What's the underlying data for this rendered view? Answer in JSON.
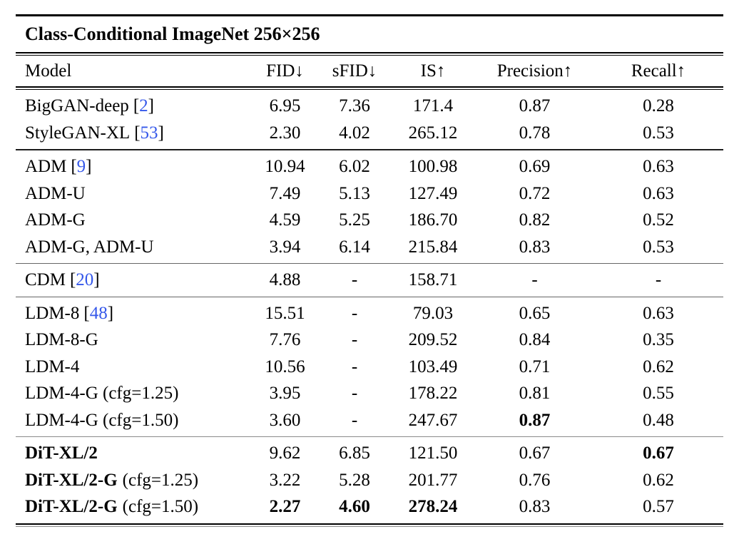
{
  "table": {
    "title": "Class-Conditional ImageNet 256×256",
    "cite_open": "[",
    "cite_close": "]",
    "citation_color": "#3558ea",
    "columns": [
      "Model",
      "FID↓",
      "sFID↓",
      "IS↑",
      "Precision↑",
      "Recall↑"
    ],
    "sections": [
      {
        "rows": [
          {
            "name": "BigGAN-deep",
            "cite": "2",
            "suffix": "",
            "values": [
              "6.95",
              "7.36",
              "171.4",
              "0.87",
              "0.28"
            ],
            "bold_name": false,
            "bold_values": []
          },
          {
            "name": "StyleGAN-XL",
            "cite": "53",
            "suffix": "",
            "values": [
              "2.30",
              "4.02",
              "265.12",
              "0.78",
              "0.53"
            ],
            "bold_name": false,
            "bold_values": []
          }
        ]
      },
      {
        "rows": [
          {
            "name": "ADM",
            "cite": "9",
            "suffix": "",
            "values": [
              "10.94",
              "6.02",
              "100.98",
              "0.69",
              "0.63"
            ],
            "bold_name": false,
            "bold_values": []
          },
          {
            "name": "ADM-U",
            "cite": "",
            "suffix": "",
            "values": [
              "7.49",
              "5.13",
              "127.49",
              "0.72",
              "0.63"
            ],
            "bold_name": false,
            "bold_values": []
          },
          {
            "name": "ADM-G",
            "cite": "",
            "suffix": "",
            "values": [
              "4.59",
              "5.25",
              "186.70",
              "0.82",
              "0.52"
            ],
            "bold_name": false,
            "bold_values": []
          },
          {
            "name": "ADM-G, ADM-U",
            "cite": "",
            "suffix": "",
            "values": [
              "3.94",
              "6.14",
              "215.84",
              "0.83",
              "0.53"
            ],
            "bold_name": false,
            "bold_values": []
          }
        ]
      },
      {
        "rows": [
          {
            "name": "CDM",
            "cite": "20",
            "suffix": "",
            "values": [
              "4.88",
              "-",
              "158.71",
              "-",
              "-"
            ],
            "bold_name": false,
            "bold_values": []
          }
        ]
      },
      {
        "rows": [
          {
            "name": "LDM-8",
            "cite": "48",
            "suffix": "",
            "values": [
              "15.51",
              "-",
              "79.03",
              "0.65",
              "0.63"
            ],
            "bold_name": false,
            "bold_values": []
          },
          {
            "name": "LDM-8-G",
            "cite": "",
            "suffix": "",
            "values": [
              "7.76",
              "-",
              "209.52",
              "0.84",
              "0.35"
            ],
            "bold_name": false,
            "bold_values": []
          },
          {
            "name": "LDM-4",
            "cite": "",
            "suffix": "",
            "values": [
              "10.56",
              "-",
              "103.49",
              "0.71",
              "0.62"
            ],
            "bold_name": false,
            "bold_values": []
          },
          {
            "name": "LDM-4-G (cfg=1.25)",
            "cite": "",
            "suffix": "",
            "values": [
              "3.95",
              "-",
              "178.22",
              "0.81",
              "0.55"
            ],
            "bold_name": false,
            "bold_values": []
          },
          {
            "name": "LDM-4-G (cfg=1.50)",
            "cite": "",
            "suffix": "",
            "values": [
              "3.60",
              "-",
              "247.67",
              "0.87",
              "0.48"
            ],
            "bold_name": false,
            "bold_values": [
              3
            ]
          }
        ]
      },
      {
        "rows": [
          {
            "name": "DiT-XL/2",
            "cite": "",
            "suffix": "",
            "values": [
              "9.62",
              "6.85",
              "121.50",
              "0.67",
              "0.67"
            ],
            "bold_name": true,
            "bold_values": [
              4
            ]
          },
          {
            "name": "DiT-XL/2-G",
            "cite": "",
            "suffix": "(cfg=1.25)",
            "values": [
              "3.22",
              "5.28",
              "201.77",
              "0.76",
              "0.62"
            ],
            "bold_name": true,
            "bold_values": []
          },
          {
            "name": "DiT-XL/2-G",
            "cite": "",
            "suffix": "(cfg=1.50)",
            "values": [
              "2.27",
              "4.60",
              "278.24",
              "0.83",
              "0.57"
            ],
            "bold_name": true,
            "bold_values": [
              0,
              1,
              2
            ]
          }
        ]
      }
    ]
  }
}
